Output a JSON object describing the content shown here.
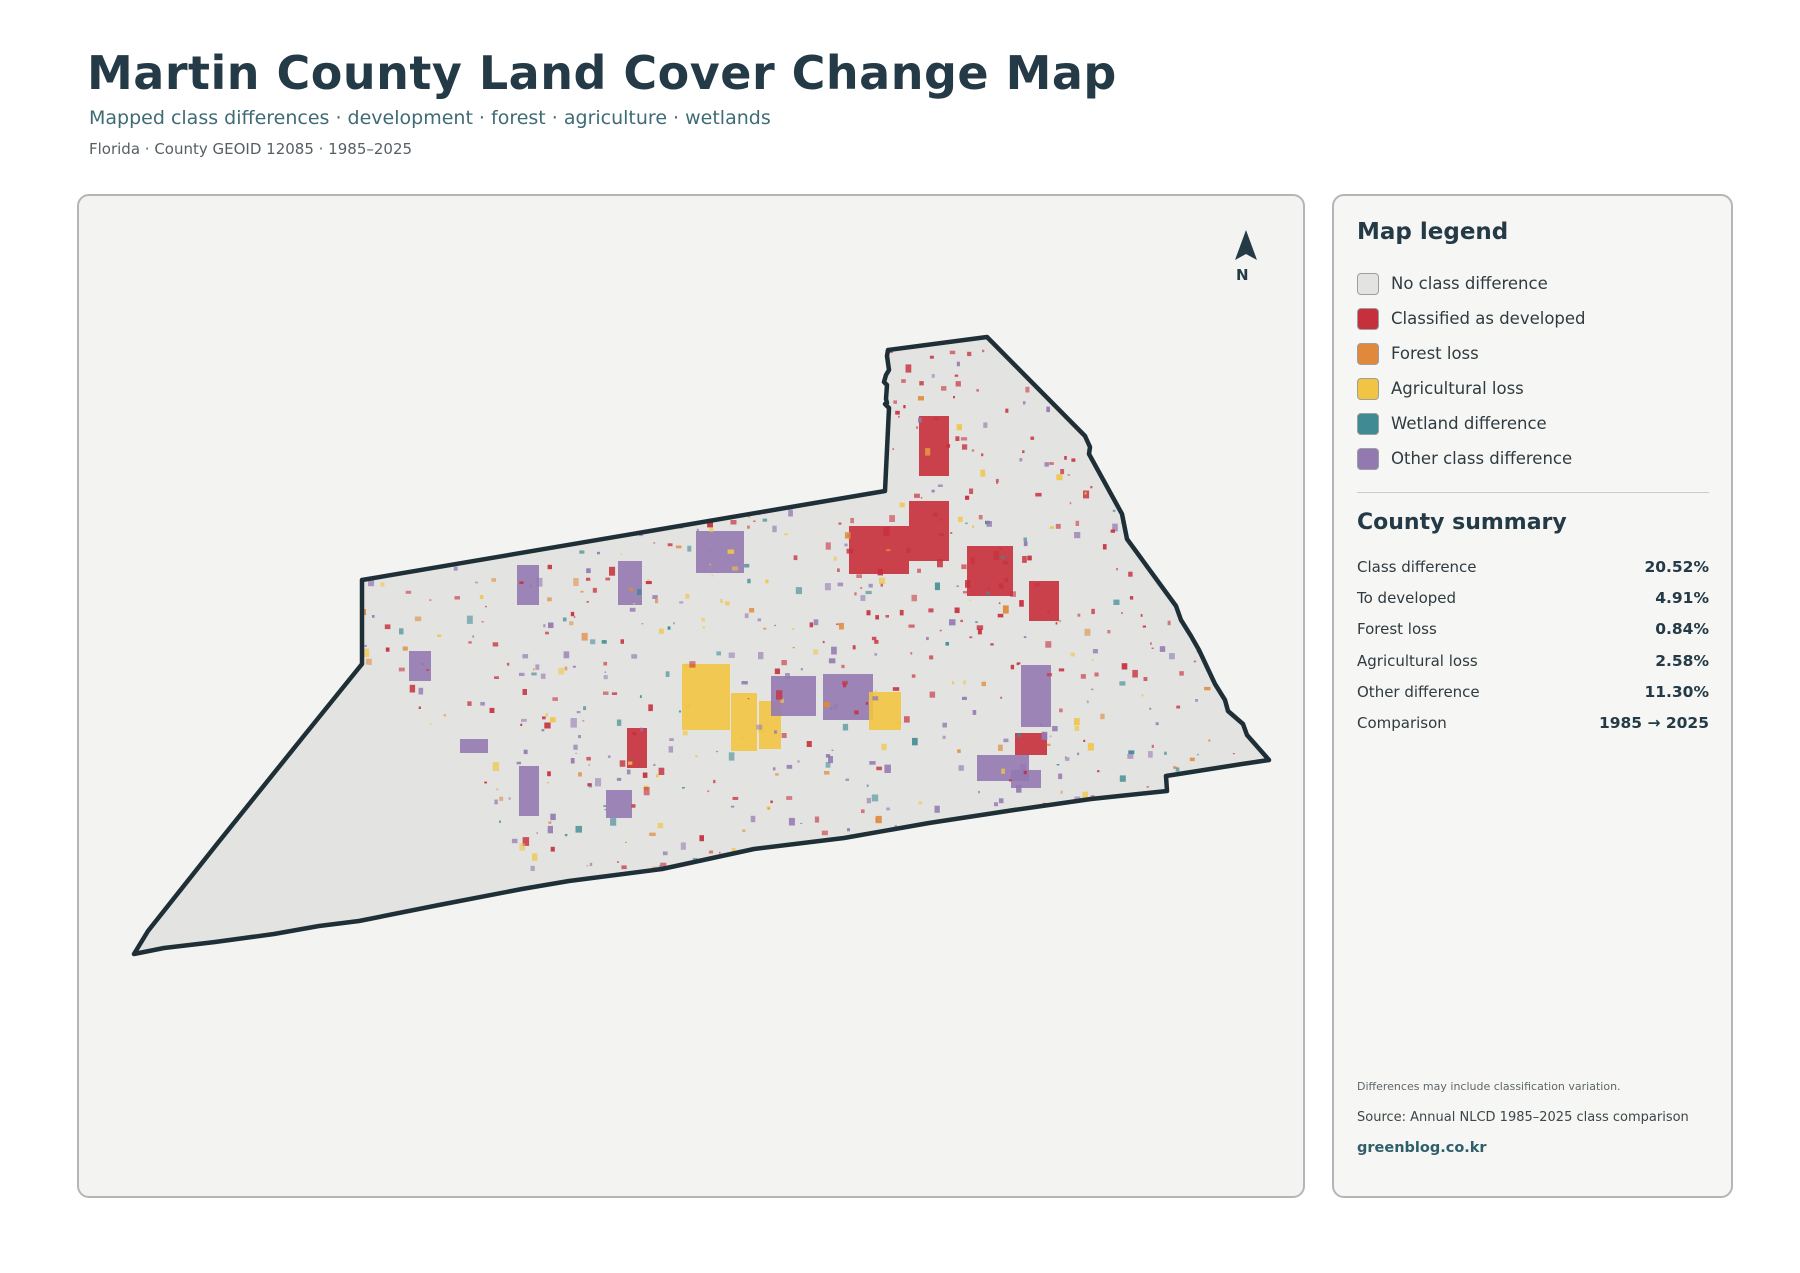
{
  "header": {
    "title": "Martin County Land Cover Change Map",
    "subtitle": "Mapped class differences · development · forest · agriculture · wetlands",
    "meta": "Florida · County GEOID 12085 · 1985–2025"
  },
  "map": {
    "north_label": "N",
    "north_icon": "north-arrow-icon",
    "colors": {
      "outline": "#1f2f37",
      "no_change": "#e3e4e1",
      "developed": "#c62f3c",
      "forest_loss": "#e0893a",
      "agricultural_loss": "#f1c443",
      "wetland": "#3f8a93",
      "other": "#9479b1"
    }
  },
  "legend": {
    "title": "Map legend",
    "items": [
      {
        "label": "No class difference",
        "color": "#e3e4e1"
      },
      {
        "label": "Classified as developed",
        "color": "#c62f3c"
      },
      {
        "label": "Forest loss",
        "color": "#e0893a"
      },
      {
        "label": "Agricultural loss",
        "color": "#f1c443"
      },
      {
        "label": "Wetland difference",
        "color": "#3f8a93"
      },
      {
        "label": "Other class difference",
        "color": "#9479b1"
      }
    ]
  },
  "summary": {
    "title": "County summary",
    "rows": [
      {
        "label": "Class difference",
        "value": "20.52%"
      },
      {
        "label": "To developed",
        "value": "4.91%"
      },
      {
        "label": "Forest loss",
        "value": "0.84%"
      },
      {
        "label": "Agricultural loss",
        "value": "2.58%"
      },
      {
        "label": "Other difference",
        "value": "11.30%"
      },
      {
        "label": "Comparison",
        "value": "1985 → 2025"
      }
    ]
  },
  "footer": {
    "note": "Differences may include classification variation.",
    "source": "Source: Annual NLCD 1985–2025 class comparison",
    "brand": "greenblog.co.kr"
  }
}
